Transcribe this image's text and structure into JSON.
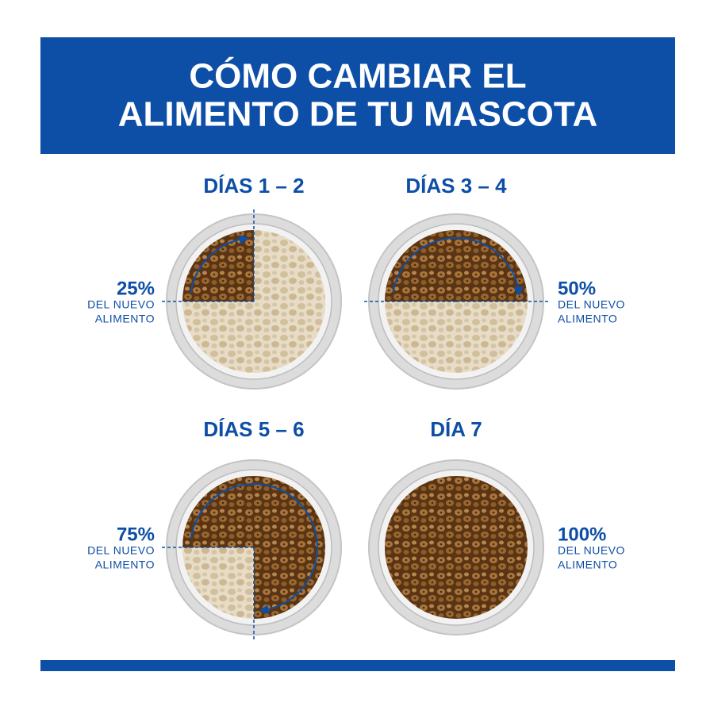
{
  "header": {
    "title_lines": [
      "CÓMO CAMBIAR EL",
      "ALIMENTO DE TU MASCOTA"
    ]
  },
  "panels": [
    {
      "heading": "DÍAS 1 – 2",
      "percent": {
        "value": 25,
        "label": "25%"
      },
      "caption_lines": [
        "DEL NUEVO",
        "ALIMENTO"
      ]
    },
    {
      "heading": "DÍAS 3 – 4",
      "percent": {
        "value": 50,
        "label": "50%"
      },
      "caption_lines": [
        "DEL NUEVO",
        "ALIMENTO"
      ]
    },
    {
      "heading": "DÍAS 5 – 6",
      "percent": {
        "value": 75,
        "label": "75%"
      },
      "caption_lines": [
        "DEL NUEVO",
        "ALIMENTO"
      ]
    },
    {
      "heading": "DÍA 7",
      "percent": {
        "value": 100,
        "label": "100%"
      },
      "caption_lines": [
        "DEL NUEVO",
        "ALIMENTO"
      ]
    }
  ]
}
